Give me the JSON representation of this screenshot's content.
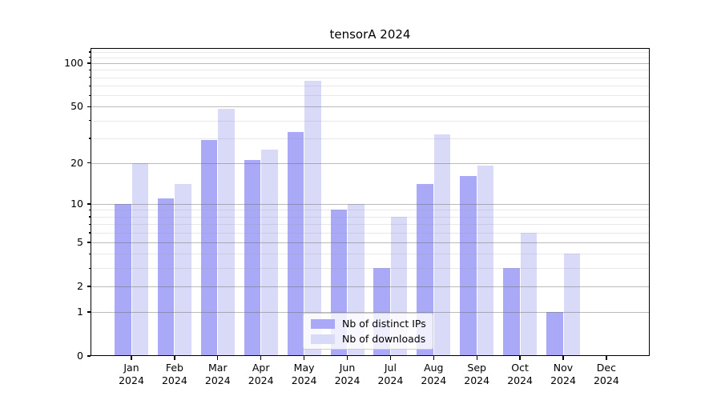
{
  "chart_data": {
    "type": "bar",
    "title": "tensorA 2024",
    "year": "2024",
    "months": [
      "Jan",
      "Feb",
      "Mar",
      "Apr",
      "May",
      "Jun",
      "Jul",
      "Aug",
      "Sep",
      "Oct",
      "Nov",
      "Dec"
    ],
    "categories": [
      "Jan 2024",
      "Feb 2024",
      "Mar 2024",
      "Apr 2024",
      "May 2024",
      "Jun 2024",
      "Jul 2024",
      "Aug 2024",
      "Sep 2024",
      "Oct 2024",
      "Nov 2024",
      "Dec 2024"
    ],
    "series": [
      {
        "key": "ips",
        "name": "Nb of distinct IPs",
        "color": "#a9a9f8",
        "values": [
          10,
          11,
          29,
          21,
          33,
          9,
          3,
          14,
          16,
          3,
          1,
          0
        ]
      },
      {
        "key": "downloads",
        "name": "Nb of downloads",
        "color": "#d9d9f8",
        "values": [
          20,
          14,
          48,
          25,
          76,
          10,
          8,
          32,
          19,
          6,
          4,
          0
        ]
      }
    ],
    "yscale": "log1p",
    "ylim": [
      0,
      127
    ],
    "y_major_ticks": [
      0,
      1,
      2,
      5,
      10,
      20,
      50,
      100
    ],
    "y_minor_ticks": [
      3,
      4,
      6,
      7,
      8,
      9,
      30,
      40,
      60,
      70,
      80,
      90,
      110,
      120
    ],
    "grid": true,
    "grid_on_top": true,
    "legend_position": "lower center",
    "xlabel": "",
    "ylabel": ""
  },
  "colors": {
    "bar_ips": "#a9a9f8",
    "bar_downloads": "#d9d9f8",
    "grid_major": "#c3c3c3",
    "grid_minor": "#e4e4e4",
    "axis": "#000000",
    "text": "#000000",
    "legend_border": "#cccccc",
    "legend_background": "rgba(255,255,255,0.8)",
    "background": "#ffffff"
  }
}
